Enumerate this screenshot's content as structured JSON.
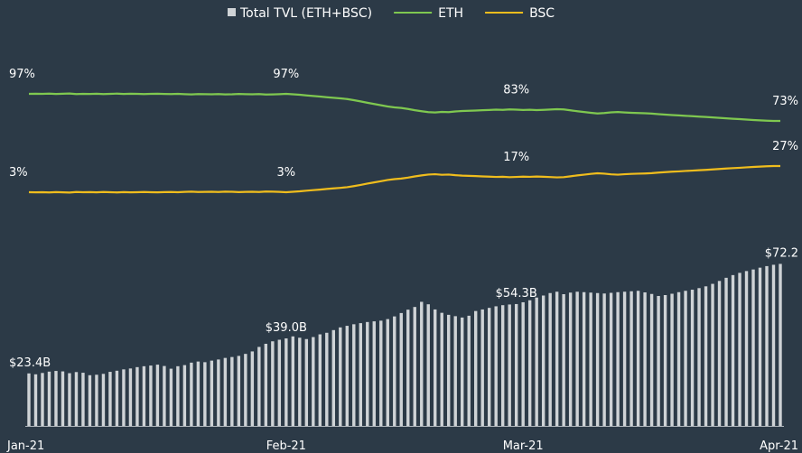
{
  "chart_data": {
    "type": "bar+line",
    "title": "",
    "legend": {
      "position": "top-center",
      "entries": [
        {
          "label": "Total TVL (ETH+BSC)",
          "kind": "bar",
          "color": "#cfd3d6"
        },
        {
          "label": "ETH",
          "kind": "line",
          "color": "#7fc850"
        },
        {
          "label": "BSC",
          "kind": "line",
          "color": "#f0bd1d"
        }
      ]
    },
    "x_ticks": [
      "Jan-21",
      "Feb-21",
      "Mar-21",
      "Apr-21"
    ],
    "x_tick_index": [
      0,
      38,
      73,
      111
    ],
    "grid": false,
    "tvl": {
      "name": "Total TVL (ETH+BSC)",
      "unit": "$B",
      "ylim": [
        0,
        78
      ],
      "values": [
        23.4,
        23.0,
        23.6,
        24.2,
        24.5,
        24.3,
        23.5,
        24.0,
        23.7,
        22.6,
        22.8,
        23.2,
        24.1,
        24.6,
        25.2,
        25.6,
        26.2,
        26.6,
        26.9,
        27.3,
        26.7,
        25.5,
        26.6,
        27.1,
        28.2,
        28.7,
        28.4,
        29.1,
        29.6,
        30.3,
        30.7,
        31.2,
        32.1,
        33.2,
        35.2,
        36.6,
        37.7,
        38.4,
        39.0,
        39.9,
        39.3,
        38.7,
        39.6,
        40.8,
        41.5,
        42.7,
        43.9,
        44.6,
        45.3,
        45.8,
        46.3,
        46.6,
        46.9,
        47.6,
        48.8,
        50.3,
        51.8,
        53.0,
        55.3,
        54.2,
        51.9,
        50.4,
        49.5,
        48.9,
        48.3,
        49.1,
        51.2,
        51.9,
        52.6,
        53.3,
        53.8,
        54.1,
        54.3,
        55.1,
        56.0,
        57.2,
        58.1,
        59.2,
        59.8,
        58.7,
        59.4,
        59.8,
        59.6,
        59.4,
        59.2,
        59.0,
        59.3,
        59.6,
        59.8,
        60.0,
        60.2,
        59.5,
        58.8,
        57.9,
        58.3,
        58.9,
        59.6,
        60.2,
        60.7,
        61.4,
        62.2,
        63.3,
        64.6,
        66.0,
        67.2,
        68.2,
        69.0,
        69.7,
        70.5,
        71.2,
        71.8,
        72.2
      ]
    },
    "eth": {
      "name": "ETH",
      "unit": "%",
      "values": [
        97.0,
        97.1,
        97.0,
        97.2,
        96.9,
        97.1,
        97.3,
        96.8,
        97.0,
        96.9,
        97.1,
        96.8,
        97.0,
        97.2,
        96.9,
        97.1,
        97.0,
        96.8,
        97.0,
        97.1,
        96.9,
        96.8,
        97.0,
        96.7,
        96.5,
        96.8,
        96.7,
        96.6,
        96.8,
        96.5,
        96.6,
        96.9,
        96.7,
        96.6,
        96.8,
        96.4,
        96.5,
        96.7,
        97.0,
        96.6,
        96.2,
        95.6,
        95.1,
        94.6,
        94.0,
        93.5,
        93.0,
        92.4,
        91.4,
        90.3,
        89.1,
        88.0,
        86.9,
        85.8,
        85.0,
        84.5,
        83.6,
        82.5,
        81.6,
        80.8,
        80.5,
        81.0,
        80.8,
        81.4,
        81.8,
        82.0,
        82.2,
        82.5,
        82.7,
        83.0,
        82.8,
        83.2,
        83.0,
        82.7,
        82.9,
        82.6,
        82.8,
        83.1,
        83.4,
        83.2,
        82.4,
        81.6,
        80.9,
        80.2,
        79.6,
        80.0,
        80.6,
        80.9,
        80.5,
        80.2,
        80.0,
        79.8,
        79.5,
        79.0,
        78.6,
        78.2,
        77.9,
        77.5,
        77.2,
        76.8,
        76.5,
        76.1,
        75.7,
        75.3,
        74.9,
        74.6,
        74.2,
        73.8,
        73.5,
        73.2,
        73.0,
        73.0
      ]
    },
    "bsc": {
      "name": "BSC",
      "unit": "%",
      "values": [
        3.0,
        2.9,
        3.0,
        2.8,
        3.1,
        2.9,
        2.7,
        3.2,
        3.0,
        3.1,
        2.9,
        3.2,
        3.0,
        2.8,
        3.1,
        2.9,
        3.0,
        3.2,
        3.0,
        2.9,
        3.1,
        3.2,
        3.0,
        3.3,
        3.5,
        3.2,
        3.3,
        3.4,
        3.2,
        3.5,
        3.4,
        3.1,
        3.3,
        3.4,
        3.2,
        3.6,
        3.5,
        3.3,
        3.0,
        3.4,
        3.8,
        4.4,
        4.9,
        5.4,
        6.0,
        6.5,
        7.0,
        7.6,
        8.6,
        9.7,
        10.9,
        12.0,
        13.1,
        14.2,
        15.0,
        15.5,
        16.4,
        17.5,
        18.4,
        19.2,
        19.5,
        19.0,
        19.2,
        18.6,
        18.2,
        18.0,
        17.8,
        17.5,
        17.3,
        17.0,
        17.2,
        16.8,
        17.0,
        17.3,
        17.1,
        17.4,
        17.2,
        16.9,
        16.6,
        16.8,
        17.6,
        18.4,
        19.1,
        19.8,
        20.4,
        20.0,
        19.4,
        19.1,
        19.5,
        19.8,
        20.0,
        20.2,
        20.5,
        21.0,
        21.4,
        21.8,
        22.1,
        22.5,
        22.8,
        23.2,
        23.5,
        23.9,
        24.3,
        24.7,
        25.1,
        25.4,
        25.8,
        26.2,
        26.5,
        26.8,
        27.0,
        27.0
      ]
    },
    "annotations": [
      {
        "series": "tvl",
        "index": 0,
        "text": "$23.4B"
      },
      {
        "series": "tvl",
        "index": 38,
        "text": "$39.0B"
      },
      {
        "series": "tvl",
        "index": 72,
        "text": "$54.3B"
      },
      {
        "series": "tvl",
        "index": 111,
        "text": "$72.2"
      },
      {
        "series": "eth",
        "index": 0,
        "text": "97%"
      },
      {
        "series": "eth",
        "index": 38,
        "text": "97%"
      },
      {
        "series": "eth",
        "index": 72,
        "text": "83%"
      },
      {
        "series": "eth",
        "index": 111,
        "text": "73%"
      },
      {
        "series": "bsc",
        "index": 0,
        "text": "3%"
      },
      {
        "series": "bsc",
        "index": 38,
        "text": "3%"
      },
      {
        "series": "bsc",
        "index": 72,
        "text": "17%"
      },
      {
        "series": "bsc",
        "index": 111,
        "text": "27%"
      }
    ]
  }
}
